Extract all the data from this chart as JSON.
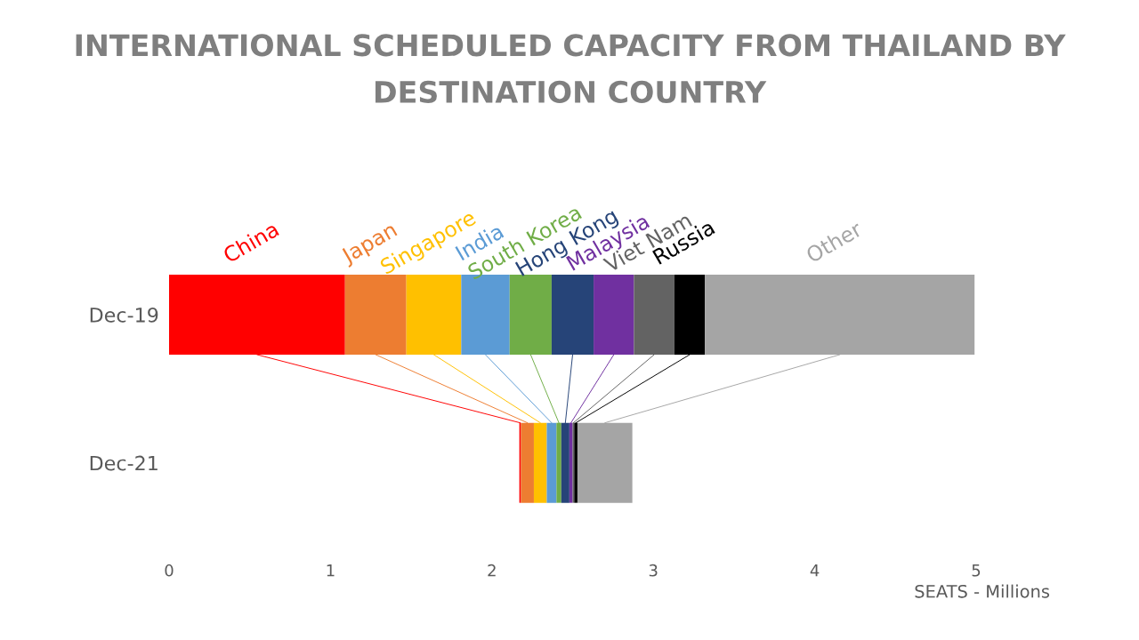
{
  "chart_data": {
    "type": "bar",
    "orientation": "horizontal",
    "title": "INTERNATIONAL SCHEDULED CAPACITY FROM THAILAND BY\nDESTINATION COUNTRY",
    "xlabel": "SEATS - Millions",
    "categories": [
      "Dec-19",
      "Dec-21"
    ],
    "xlim": [
      0,
      5
    ],
    "xticks": [
      0,
      1,
      2,
      3,
      4,
      5
    ],
    "grid": false,
    "legend": false,
    "series": [
      {
        "name": "China",
        "color": "#ff0000",
        "base": [
          0,
          2.17
        ],
        "values": [
          1.09,
          0.01
        ]
      },
      {
        "name": "Japan",
        "color": "#ed7d31",
        "base": [
          1.09,
          2.18
        ],
        "values": [
          0.38,
          0.08
        ]
      },
      {
        "name": "Singapore",
        "color": "#ffc000",
        "base": [
          1.47,
          2.26
        ],
        "values": [
          0.34,
          0.08
        ]
      },
      {
        "name": "India",
        "color": "#5b9bd5",
        "base": [
          1.81,
          2.34
        ],
        "values": [
          0.3,
          0.06
        ]
      },
      {
        "name": "South Korea",
        "color": "#70ad47",
        "base": [
          2.11,
          2.4
        ],
        "values": [
          0.26,
          0.03
        ]
      },
      {
        "name": "Hong Kong",
        "color": "#264478",
        "base": [
          2.37,
          2.43
        ],
        "values": [
          0.26,
          0.05
        ]
      },
      {
        "name": "Malaysia",
        "color": "#7030a0",
        "base": [
          2.63,
          2.48
        ],
        "values": [
          0.25,
          0.02
        ]
      },
      {
        "name": "Viet Nam",
        "color": "#636363",
        "base": [
          2.88,
          2.5
        ],
        "values": [
          0.25,
          0.01
        ]
      },
      {
        "name": "Russia",
        "color": "#000000",
        "base": [
          3.13,
          2.51
        ],
        "values": [
          0.19,
          0.02
        ]
      },
      {
        "name": "Other",
        "color": "#a5a5a5",
        "base": [
          3.32,
          2.53
        ],
        "values": [
          1.67,
          0.34
        ]
      }
    ]
  }
}
